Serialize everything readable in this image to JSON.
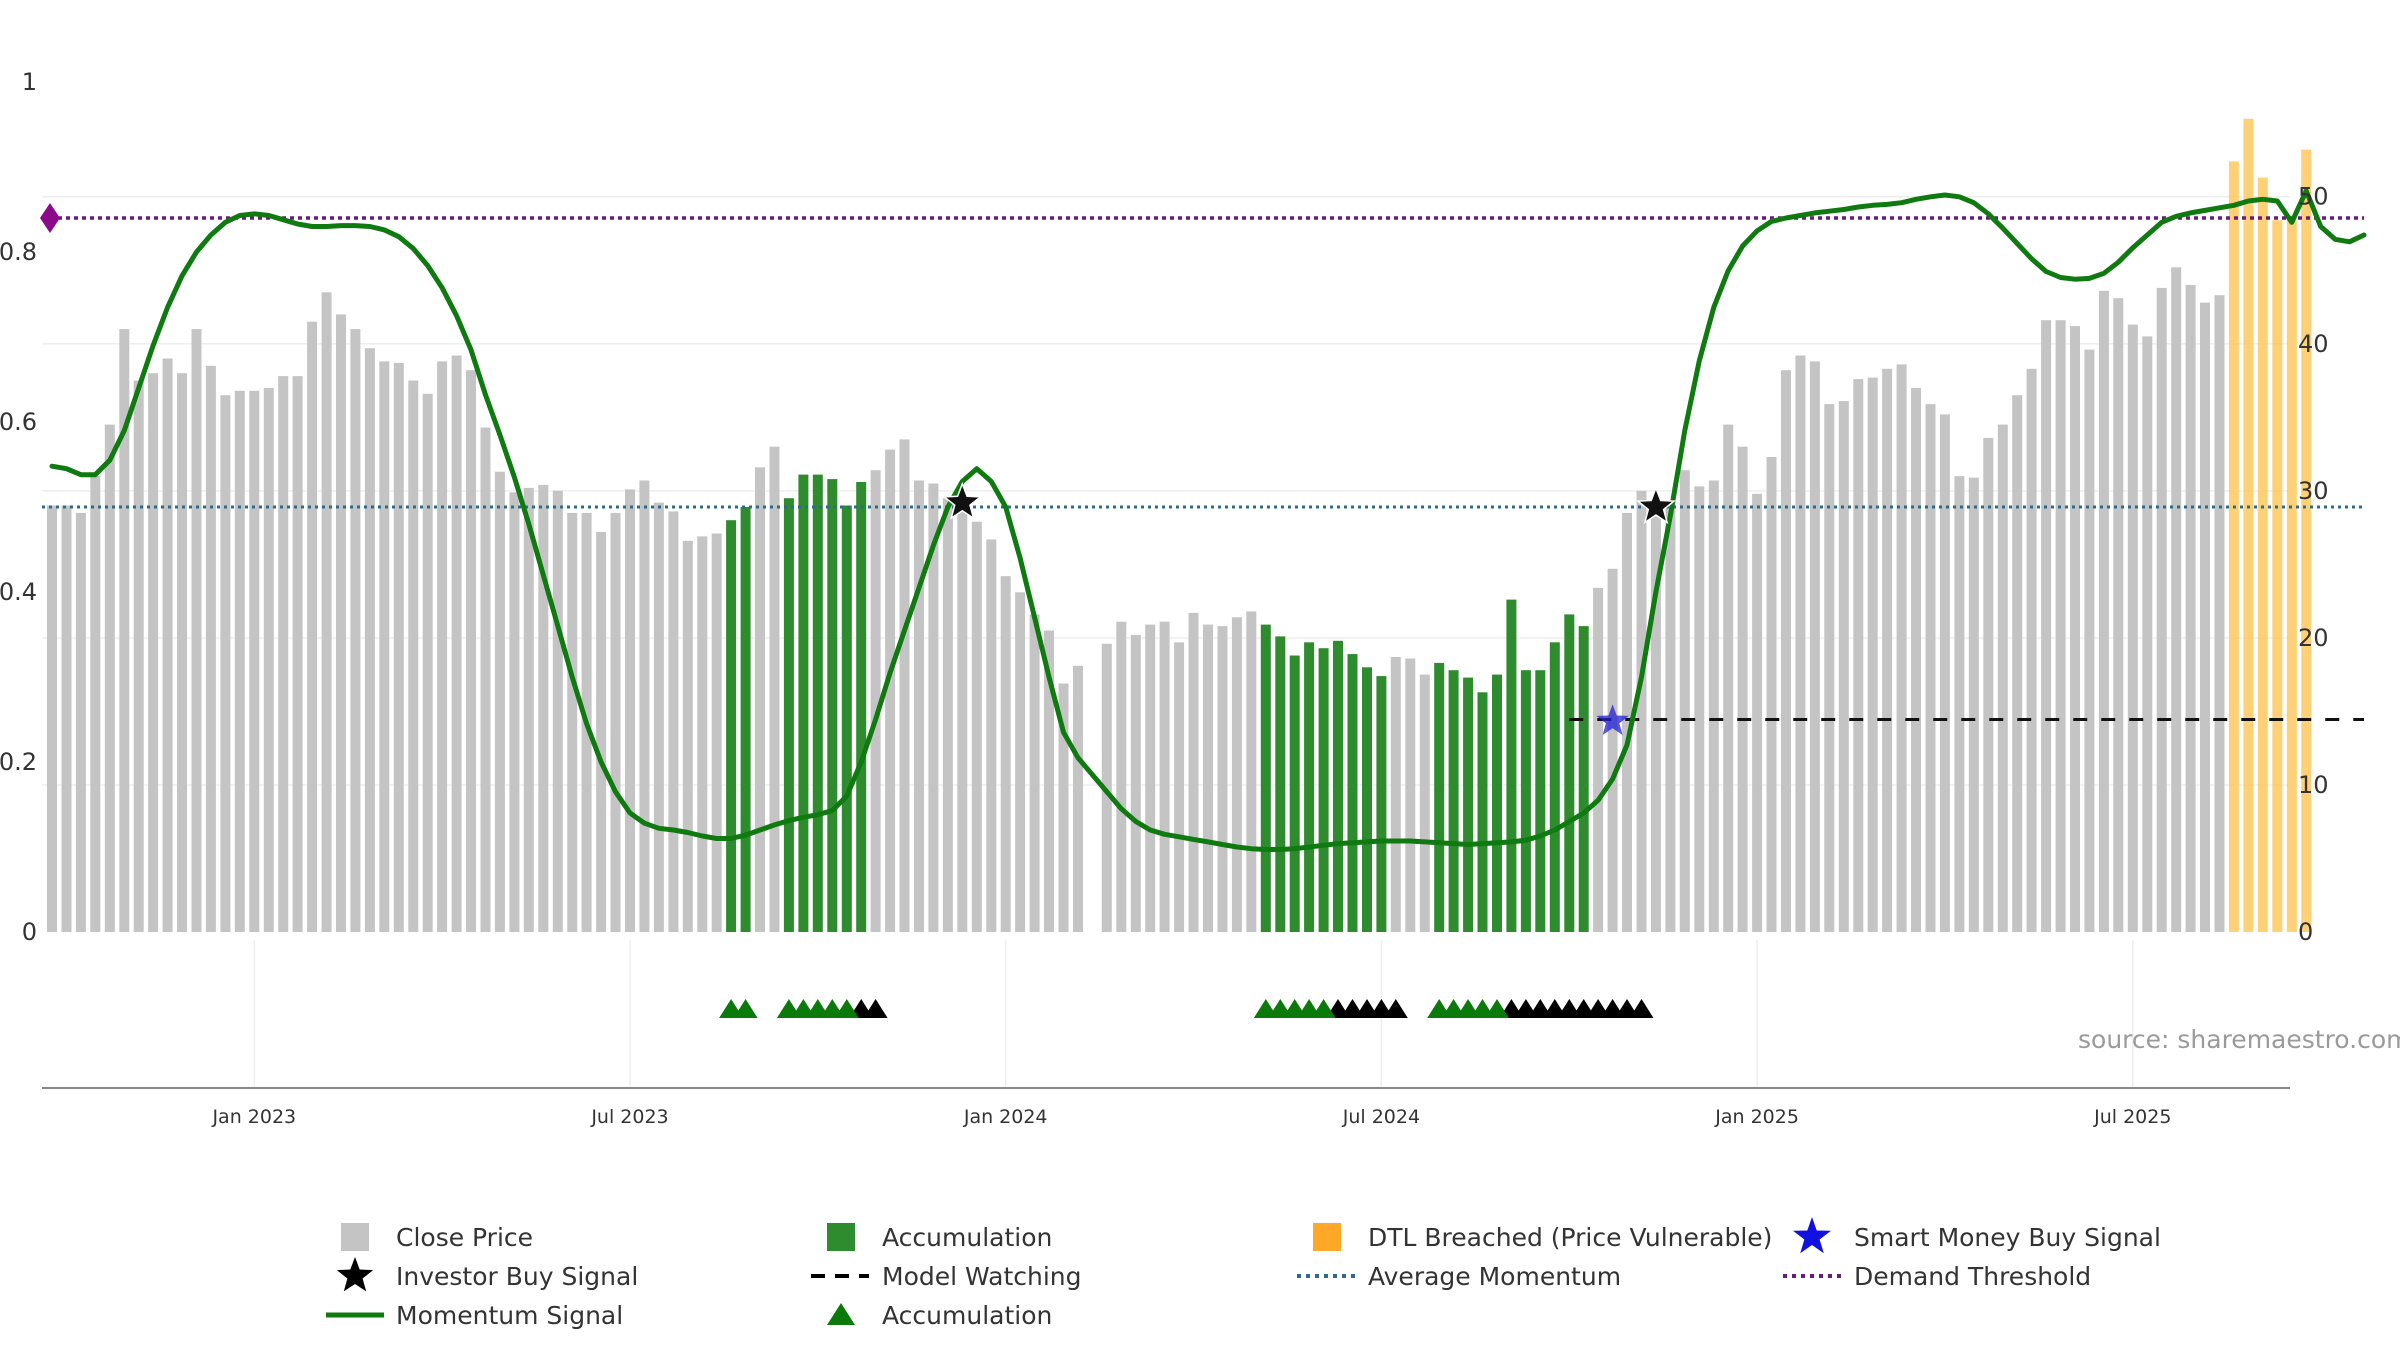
{
  "chart_data": {
    "type": "bar",
    "title": "",
    "source": "source: sharemaestro.com",
    "left_axis": {
      "ticks": [
        0,
        0.2,
        0.4,
        0.6,
        0.8,
        1
      ],
      "labels": [
        "0",
        "0.2",
        "0.4",
        "0.6",
        "0.8",
        "1"
      ],
      "range": [
        0,
        1
      ]
    },
    "right_axis": {
      "ticks": [
        0,
        10,
        20,
        30,
        40,
        50
      ],
      "labels": [
        "0",
        "10",
        "20",
        "30",
        "40",
        "50"
      ],
      "range": [
        0,
        57.8
      ]
    },
    "x_ticks": [
      {
        "week": 14,
        "label": "Jan 2023"
      },
      {
        "week": 40,
        "label": "Jul 2023"
      },
      {
        "week": 66,
        "label": "Jan 2024"
      },
      {
        "week": 92,
        "label": "Jul 2024"
      },
      {
        "week": 118,
        "label": "Jan 2025"
      },
      {
        "week": 144,
        "label": "Jul 2025"
      }
    ],
    "close_price": [
      29,
      29,
      28.5,
      31,
      34.5,
      41,
      37.5,
      38,
      39,
      38,
      41,
      38.5,
      36.5,
      36.8,
      36.8,
      37,
      37.8,
      37.8,
      41.5,
      43.5,
      42,
      41,
      39.7,
      38.8,
      38.7,
      37.5,
      36.6,
      38.8,
      39.2,
      38.2,
      34.3,
      31.3,
      29.9,
      30.2,
      30.4,
      30,
      28.5,
      28.5,
      27.2,
      28.5,
      30.1,
      30.7,
      29.2,
      28.6,
      26.6,
      26.9,
      27.1,
      28,
      28.9,
      31.6,
      33,
      29.5,
      31.1,
      31.1,
      30.8,
      29,
      30.6,
      31.4,
      32.8,
      33.5,
      30.7,
      30.5,
      29.5,
      28.8,
      27.9,
      26.7,
      24.2,
      23.1,
      21.6,
      20.5,
      16.9,
      18.1,
      0,
      19.6,
      21.1,
      20.2,
      20.9,
      21.1,
      19.7,
      21.7,
      20.9,
      20.8,
      21.4,
      21.8,
      20.9,
      20.1,
      18.8,
      19.7,
      19.3,
      19.8,
      18.9,
      18,
      17.4,
      18.7,
      18.6,
      17.5,
      18.3,
      17.8,
      17.3,
      16.3,
      17.5,
      22.6,
      17.8,
      17.8,
      19.7,
      21.6,
      20.8,
      23.4,
      24.7,
      28.5,
      30,
      28.5,
      29.3,
      31.4,
      30.3,
      30.7,
      34.5,
      33,
      29.8,
      32.3,
      38.2,
      39.2,
      38.8,
      35.9,
      36.1,
      37.6,
      37.7,
      38.3,
      38.6,
      37,
      35.9,
      35.2,
      31,
      30.9,
      33.6,
      34.5,
      36.5,
      38.3,
      41.6,
      41.6,
      41.2,
      39.6,
      43.6,
      43.1,
      41.3,
      40.5,
      43.8,
      45.2,
      44,
      42.8,
      43.3,
      52.4,
      55.3,
      51.3,
      48.4,
      48.4,
      53.2
    ],
    "accumulation_weeks": [
      47,
      48,
      51,
      52,
      53,
      54,
      55,
      56,
      84,
      85,
      86,
      87,
      88,
      89,
      90,
      91,
      92,
      96,
      97,
      98,
      99,
      100,
      101,
      102,
      103,
      104,
      105,
      106
    ],
    "dtl_breached_weeks": [
      151,
      152,
      153,
      154,
      155,
      156
    ],
    "momentum_signal_points": [
      [
        0,
        0.548
      ],
      [
        1,
        0.545
      ],
      [
        2,
        0.538
      ],
      [
        3,
        0.538
      ],
      [
        4,
        0.555
      ],
      [
        5,
        0.59
      ],
      [
        6,
        0.64
      ],
      [
        7,
        0.69
      ],
      [
        8,
        0.735
      ],
      [
        9,
        0.772
      ],
      [
        10,
        0.8
      ],
      [
        11,
        0.82
      ],
      [
        12,
        0.835
      ],
      [
        13,
        0.843
      ],
      [
        14,
        0.845
      ],
      [
        15,
        0.843
      ],
      [
        16,
        0.838
      ],
      [
        17,
        0.833
      ],
      [
        18,
        0.83
      ],
      [
        19,
        0.83
      ],
      [
        20,
        0.831
      ],
      [
        21,
        0.831
      ],
      [
        22,
        0.83
      ],
      [
        23,
        0.826
      ],
      [
        24,
        0.818
      ],
      [
        25,
        0.804
      ],
      [
        26,
        0.784
      ],
      [
        27,
        0.758
      ],
      [
        28,
        0.725
      ],
      [
        29,
        0.685
      ],
      [
        30,
        0.632
      ],
      [
        31,
        0.585
      ],
      [
        32,
        0.535
      ],
      [
        33,
        0.48
      ],
      [
        34,
        0.42
      ],
      [
        35,
        0.36
      ],
      [
        36,
        0.3
      ],
      [
        37,
        0.245
      ],
      [
        38,
        0.2
      ],
      [
        39,
        0.165
      ],
      [
        40,
        0.14
      ],
      [
        41,
        0.128
      ],
      [
        42,
        0.122
      ],
      [
        43,
        0.12
      ],
      [
        44,
        0.117
      ],
      [
        45,
        0.113
      ],
      [
        46,
        0.11
      ],
      [
        47,
        0.11
      ],
      [
        48,
        0.114
      ],
      [
        49,
        0.12
      ],
      [
        50,
        0.126
      ],
      [
        51,
        0.131
      ],
      [
        52,
        0.135
      ],
      [
        53,
        0.138
      ],
      [
        54,
        0.143
      ],
      [
        55,
        0.16
      ],
      [
        56,
        0.2
      ],
      [
        57,
        0.25
      ],
      [
        58,
        0.305
      ],
      [
        59,
        0.355
      ],
      [
        60,
        0.405
      ],
      [
        61,
        0.455
      ],
      [
        62,
        0.5
      ],
      [
        63,
        0.53
      ],
      [
        64,
        0.545
      ],
      [
        65,
        0.53
      ],
      [
        66,
        0.5
      ],
      [
        67,
        0.44
      ],
      [
        68,
        0.37
      ],
      [
        69,
        0.3
      ],
      [
        70,
        0.235
      ],
      [
        71,
        0.205
      ],
      [
        72,
        0.185
      ],
      [
        73,
        0.165
      ],
      [
        74,
        0.145
      ],
      [
        75,
        0.13
      ],
      [
        76,
        0.12
      ],
      [
        77,
        0.115
      ],
      [
        78,
        0.112
      ],
      [
        79,
        0.109
      ],
      [
        80,
        0.106
      ],
      [
        81,
        0.103
      ],
      [
        82,
        0.1
      ],
      [
        83,
        0.098
      ],
      [
        84,
        0.097
      ],
      [
        85,
        0.097
      ],
      [
        86,
        0.098
      ],
      [
        87,
        0.1
      ],
      [
        88,
        0.102
      ],
      [
        89,
        0.104
      ],
      [
        90,
        0.105
      ],
      [
        91,
        0.106
      ],
      [
        92,
        0.107
      ],
      [
        93,
        0.107
      ],
      [
        94,
        0.107
      ],
      [
        95,
        0.106
      ],
      [
        96,
        0.105
      ],
      [
        97,
        0.104
      ],
      [
        98,
        0.103
      ],
      [
        99,
        0.104
      ],
      [
        100,
        0.105
      ],
      [
        101,
        0.106
      ],
      [
        102,
        0.108
      ],
      [
        103,
        0.113
      ],
      [
        104,
        0.12
      ],
      [
        105,
        0.13
      ],
      [
        106,
        0.14
      ],
      [
        107,
        0.155
      ],
      [
        108,
        0.18
      ],
      [
        109,
        0.22
      ],
      [
        110,
        0.3
      ],
      [
        111,
        0.4
      ],
      [
        112,
        0.49
      ],
      [
        113,
        0.59
      ],
      [
        114,
        0.672
      ],
      [
        115,
        0.735
      ],
      [
        116,
        0.778
      ],
      [
        117,
        0.807
      ],
      [
        118,
        0.825
      ],
      [
        119,
        0.836
      ],
      [
        120,
        0.84
      ],
      [
        121,
        0.843
      ],
      [
        122,
        0.846
      ],
      [
        123,
        0.848
      ],
      [
        124,
        0.85
      ],
      [
        125,
        0.853
      ],
      [
        126,
        0.855
      ],
      [
        127,
        0.856
      ],
      [
        128,
        0.858
      ],
      [
        129,
        0.862
      ],
      [
        130,
        0.865
      ],
      [
        131,
        0.867
      ],
      [
        132,
        0.865
      ],
      [
        133,
        0.858
      ],
      [
        134,
        0.845
      ],
      [
        135,
        0.828
      ],
      [
        136,
        0.81
      ],
      [
        137,
        0.792
      ],
      [
        138,
        0.777
      ],
      [
        139,
        0.77
      ],
      [
        140,
        0.768
      ],
      [
        141,
        0.769
      ],
      [
        142,
        0.775
      ],
      [
        143,
        0.788
      ],
      [
        144,
        0.805
      ],
      [
        145,
        0.82
      ],
      [
        146,
        0.835
      ],
      [
        147,
        0.842
      ],
      [
        148,
        0.846
      ],
      [
        149,
        0.849
      ],
      [
        150,
        0.852
      ],
      [
        151,
        0.855
      ],
      [
        152,
        0.86
      ],
      [
        153,
        0.862
      ],
      [
        154,
        0.86
      ],
      [
        155,
        0.835
      ],
      [
        156,
        0.872
      ],
      [
        157,
        0.83
      ],
      [
        158,
        0.815
      ],
      [
        159,
        0.812
      ],
      [
        160,
        0.82
      ]
    ],
    "average_momentum": 0.5,
    "demand_threshold": 0.84,
    "demand_threshold_marker": {
      "week": 0,
      "value": 0.84
    },
    "model_watching": {
      "start_week": 105,
      "end_week": 160,
      "value": 0.25
    },
    "investor_buy_signals": [
      {
        "week": 63,
        "value": 0.505
      },
      {
        "week": 111,
        "value": 0.5
      }
    ],
    "smart_money_buy_signals": [
      {
        "week": 108,
        "value": 0.248
      }
    ],
    "accumulation_triangles": {
      "green": [
        47,
        48,
        51,
        52,
        53,
        54,
        55,
        84,
        85,
        86,
        87,
        88,
        96,
        97,
        98,
        99,
        100
      ],
      "black": [
        56,
        57,
        89,
        90,
        91,
        92,
        93,
        101,
        102,
        103,
        104,
        105,
        106,
        107,
        108,
        109,
        110
      ]
    },
    "legend": {
      "close_price": "Close Price",
      "accumulation_bars": "Accumulation",
      "dtl_breached": "DTL Breached (Price Vulnerable)",
      "smart_money": "Smart Money Buy Signal",
      "investor_buy": "Investor Buy Signal",
      "model_watching": "Model Watching",
      "average_momentum": "Average Momentum",
      "demand_threshold": "Demand Threshold",
      "momentum_signal": "Momentum Signal",
      "accumulation_triangles": "Accumulation"
    },
    "colors": {
      "close_price": "#c4c4c4",
      "accumulation": "#2e8b2e",
      "dtl_breached": "#ffc24a",
      "momentum": "#0f7a0f",
      "average_momentum": "#2c6b8c",
      "demand_threshold": "#6a1a7a",
      "smart_money": "#1f1fd6",
      "investor_buy": "#111111",
      "model_watching": "#111111",
      "marker": "#8a0a8a",
      "grid": "#eeeeee",
      "axis": "#888888"
    }
  }
}
